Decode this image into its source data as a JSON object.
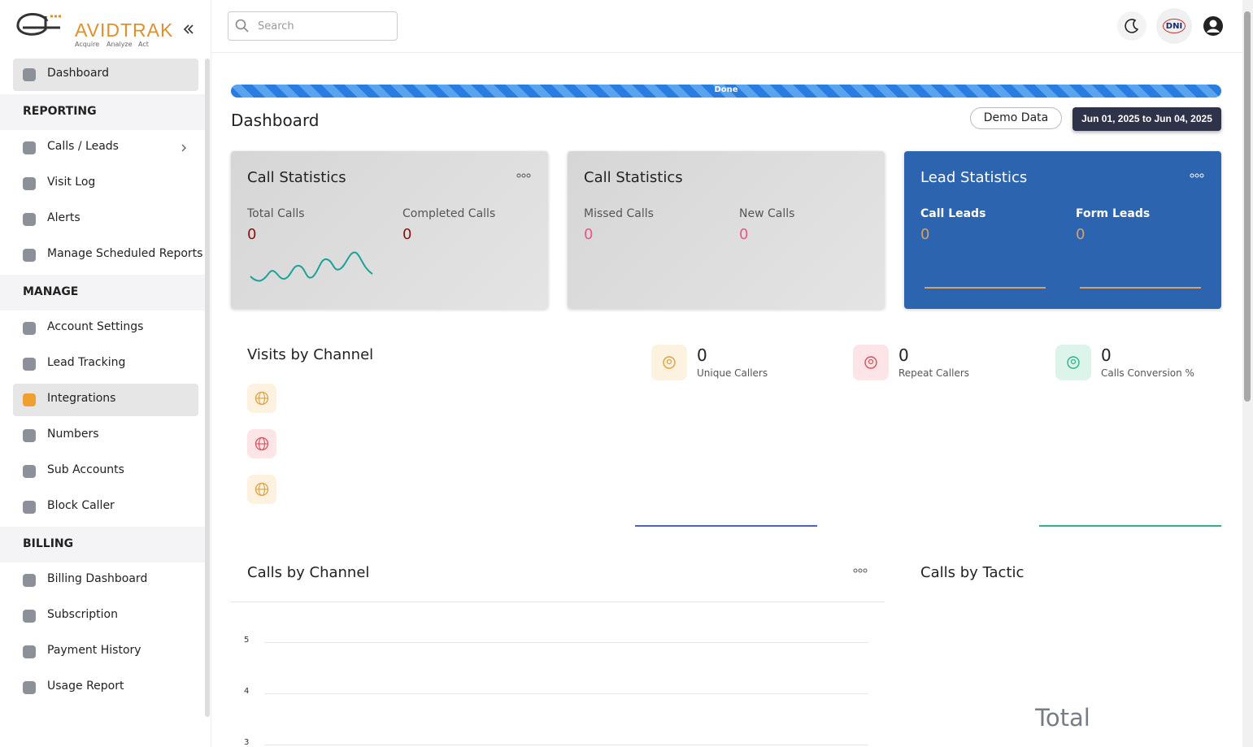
{
  "logo": {
    "brand": "AVIDTRAK",
    "tagline": [
      "Acquire",
      "Analyze",
      "Act"
    ]
  },
  "sidebar": {
    "top": {
      "label": "Dashboard",
      "active": true
    },
    "sections": [
      {
        "title": "REPORTING",
        "items": [
          {
            "label": "Calls / Leads",
            "expandable": true
          },
          {
            "label": "Visit Log"
          },
          {
            "label": "Alerts"
          },
          {
            "label": "Manage Scheduled Reports"
          }
        ]
      },
      {
        "title": "MANAGE",
        "items": [
          {
            "label": "Account Settings"
          },
          {
            "label": "Lead Tracking"
          },
          {
            "label": "Integrations",
            "active": true
          },
          {
            "label": "Numbers"
          },
          {
            "label": "Sub Accounts"
          },
          {
            "label": "Block Caller"
          }
        ]
      },
      {
        "title": "BILLING",
        "items": [
          {
            "label": "Billing Dashboard"
          },
          {
            "label": "Subscription"
          },
          {
            "label": "Payment History"
          },
          {
            "label": "Usage Report"
          }
        ]
      }
    ]
  },
  "topbar": {
    "search_placeholder": "Search",
    "dni": "DNI"
  },
  "progress": {
    "label": "Done"
  },
  "page": {
    "title": "Dashboard",
    "demo_button": "Demo Data",
    "date_range": "Jun 01, 2025 to Jun 04, 2025"
  },
  "stat_cards": [
    {
      "title": "Call Statistics",
      "metrics": [
        {
          "label": "Total Calls",
          "value": 0
        },
        {
          "label": "Completed Calls",
          "value": 0
        }
      ]
    },
    {
      "title": "Call Statistics",
      "metrics": [
        {
          "label": "Missed Calls",
          "value": 0
        },
        {
          "label": "New Calls",
          "value": 0
        }
      ]
    },
    {
      "title": "Lead Statistics",
      "metrics": [
        {
          "label": "Call Leads",
          "value": 0
        },
        {
          "label": "Form Leads",
          "value": 0
        }
      ]
    }
  ],
  "visits_by_channel": {
    "title": "Visits by Channel"
  },
  "summary_tiles": [
    {
      "value": 0,
      "label": "Unique Callers"
    },
    {
      "value": 0,
      "label": "Repeat Callers"
    },
    {
      "value": 0,
      "label": "Calls Conversion %"
    }
  ],
  "calls_by_channel": {
    "title": "Calls by Channel",
    "ylim": [
      0,
      5
    ],
    "yticks": [
      3,
      4,
      5
    ]
  },
  "calls_by_tactic": {
    "title": "Calls by Tactic",
    "total_label": "Total"
  }
}
